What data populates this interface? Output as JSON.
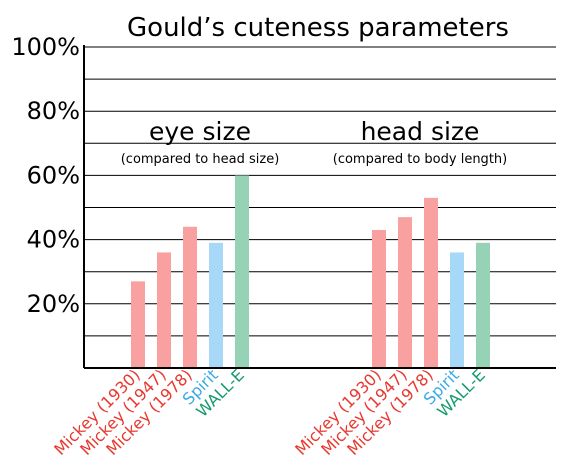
{
  "colors": {
    "mickey": "#f9a0a0",
    "spirit": "#a8d8f8",
    "walle": "#96d3b6",
    "mickey_label": "#e8382e",
    "spirit_label": "#3aa9e6",
    "walle_label": "#159a6c"
  },
  "chart_data": {
    "type": "bar",
    "title": "Gould’s cuteness parameters",
    "xlabel": "",
    "ylabel": "",
    "ylim": [
      0,
      100
    ],
    "yticks": [
      20,
      40,
      60,
      80,
      100
    ],
    "ytick_labels": [
      "20%",
      "40%",
      "60%",
      "80%",
      "100%"
    ],
    "grid": true,
    "categories": [
      "Mickey (1930)",
      "Mickey (1947)",
      "Mickey (1978)",
      "Spirit",
      "WALL-E"
    ],
    "groups": [
      {
        "title": "eye size",
        "subtitle": "(compared to head size)",
        "values": [
          27,
          36,
          44,
          39,
          60
        ]
      },
      {
        "title": "head size",
        "subtitle": "(compared to body length)",
        "values": [
          43,
          47,
          53,
          36,
          39
        ]
      }
    ]
  }
}
